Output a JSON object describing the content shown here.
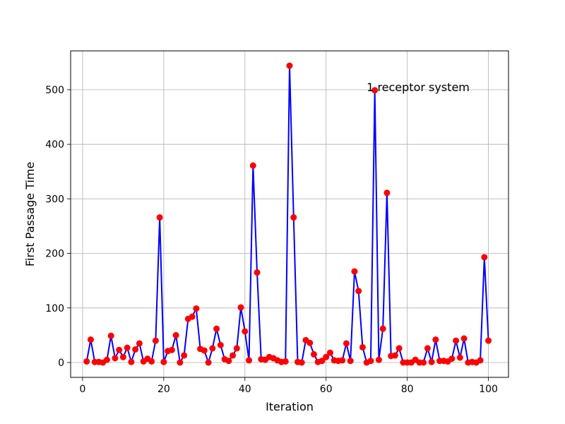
{
  "chart_data": {
    "type": "line",
    "title": "",
    "xlabel": "Iteration",
    "ylabel": "First Passage Time",
    "annotation": "1 receptor system",
    "annotation_at": [
      70,
      505
    ],
    "xlim": [
      -2.95,
      104.95
    ],
    "ylim": [
      -27.2,
      571.2
    ],
    "xticks": [
      0,
      20,
      40,
      60,
      80,
      100
    ],
    "yticks": [
      0,
      100,
      200,
      300,
      400,
      500
    ],
    "grid": true,
    "line_color": "#0000ff",
    "marker_color": "#ff0000",
    "x": [
      1,
      2,
      3,
      4,
      5,
      6,
      7,
      8,
      9,
      10,
      11,
      12,
      13,
      14,
      15,
      16,
      17,
      18,
      19,
      20,
      21,
      22,
      23,
      24,
      25,
      26,
      27,
      28,
      29,
      30,
      31,
      32,
      33,
      34,
      35,
      36,
      37,
      38,
      39,
      40,
      41,
      42,
      43,
      44,
      45,
      46,
      47,
      48,
      49,
      50,
      51,
      52,
      53,
      54,
      55,
      56,
      57,
      58,
      59,
      60,
      61,
      62,
      63,
      64,
      65,
      66,
      67,
      68,
      69,
      70,
      71,
      72,
      73,
      74,
      75,
      76,
      77,
      78,
      79,
      80,
      81,
      82,
      83,
      84,
      85,
      86,
      87,
      88,
      89,
      90,
      91,
      92,
      93,
      94,
      95,
      96,
      97,
      98,
      99,
      100
    ],
    "y": [
      2,
      42,
      1,
      1,
      0,
      5,
      49,
      8,
      23,
      10,
      27,
      1,
      24,
      35,
      2,
      7,
      2,
      40,
      266,
      1,
      21,
      23,
      50,
      0,
      13,
      80,
      84,
      99,
      25,
      22,
      0,
      26,
      62,
      32,
      6,
      3,
      13,
      26,
      101,
      57,
      4,
      361,
      165,
      6,
      5,
      10,
      8,
      4,
      1,
      2,
      544,
      266,
      1,
      0,
      41,
      36,
      15,
      1,
      3,
      10,
      18,
      4,
      3,
      4,
      35,
      3,
      167,
      131,
      28,
      0,
      3,
      499,
      5,
      62,
      311,
      12,
      13,
      26,
      0,
      0,
      0,
      5,
      0,
      0,
      26,
      1,
      42,
      3,
      3,
      2,
      7,
      40,
      9,
      44,
      0,
      1,
      0,
      4,
      193,
      40
    ]
  }
}
